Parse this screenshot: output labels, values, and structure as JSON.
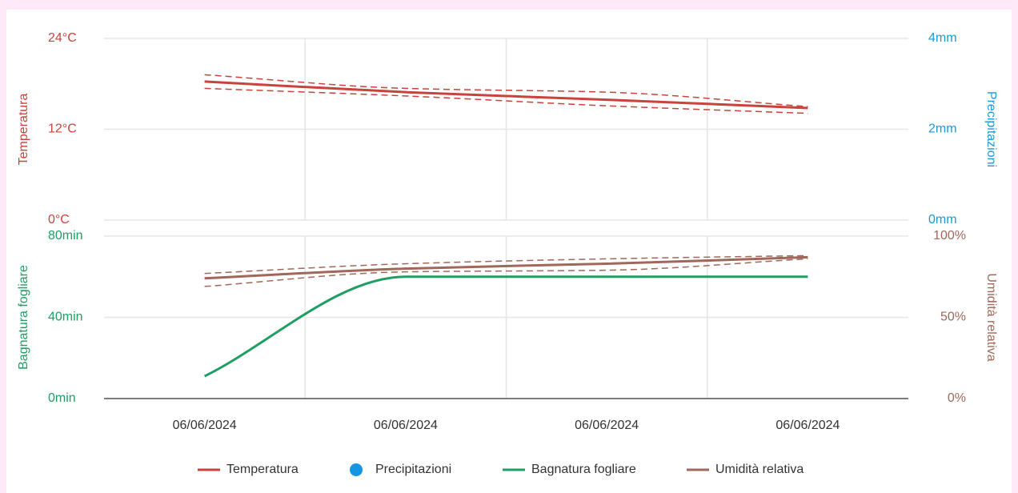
{
  "chart_data": {
    "type": "line",
    "categories": [
      "06/06/2024",
      "06/06/2024",
      "06/06/2024",
      "06/06/2024"
    ],
    "panels": [
      {
        "ylabel": "Temperatura",
        "ylabel_color": "#c9423c",
        "ylim": [
          0,
          24
        ],
        "yticks": [
          {
            "value": 0,
            "label": "0°C"
          },
          {
            "value": 12,
            "label": "12°C"
          },
          {
            "value": 24,
            "label": "24°C"
          }
        ],
        "y2label": "Precipitazioni",
        "y2label_color": "#1a9ad6",
        "y2lim": [
          0,
          4
        ],
        "y2ticks": [
          {
            "value": 0,
            "label": "0mm"
          },
          {
            "value": 2,
            "label": "2mm"
          },
          {
            "value": 4,
            "label": "4mm"
          }
        ],
        "series": [
          {
            "name": "Temperatura",
            "color": "#c9423c",
            "values": [
              18.3,
              16.9,
              15.9,
              14.8
            ]
          },
          {
            "color": "#c9423c",
            "dashed": true,
            "values": [
              19.2,
              17.4,
              16.9,
              15.0
            ]
          },
          {
            "color": "#c9423c",
            "dashed": true,
            "values": [
              17.4,
              16.4,
              15.1,
              14.1
            ]
          },
          {
            "name": "Precipitazioni",
            "color": "#1496e0",
            "marker": "dot",
            "axis": "y2",
            "values": [
              null,
              null,
              null,
              null
            ]
          }
        ]
      },
      {
        "ylabel": "Bagnatura fogliare",
        "ylabel_color": "#1e9e62",
        "ylim": [
          0,
          80
        ],
        "yticks": [
          {
            "value": 0,
            "label": "0min"
          },
          {
            "value": 40,
            "label": "40min"
          },
          {
            "value": 80,
            "label": "80min"
          }
        ],
        "y2label": "Umidità relativa",
        "y2label_color": "#a0675a",
        "y2lim": [
          0,
          100
        ],
        "y2ticks": [
          {
            "value": 0,
            "label": "0%"
          },
          {
            "value": 50,
            "label": "50%"
          },
          {
            "value": 100,
            "label": "100%"
          }
        ],
        "series": [
          {
            "name": "Bagnatura fogliare",
            "color": "#1e9e62",
            "values": [
              11,
              60,
              60,
              60
            ]
          },
          {
            "name": "Umidità relativa",
            "color": "#a0675a",
            "axis": "y2",
            "values": [
              74,
              80,
              83,
              87
            ]
          },
          {
            "color": "#a0675a",
            "dashed": true,
            "axis": "y2",
            "values": [
              77,
              83,
              86,
              88
            ]
          },
          {
            "color": "#a0675a",
            "dashed": true,
            "axis": "y2",
            "values": [
              69,
              78,
              79,
              86
            ]
          }
        ]
      }
    ]
  }
}
